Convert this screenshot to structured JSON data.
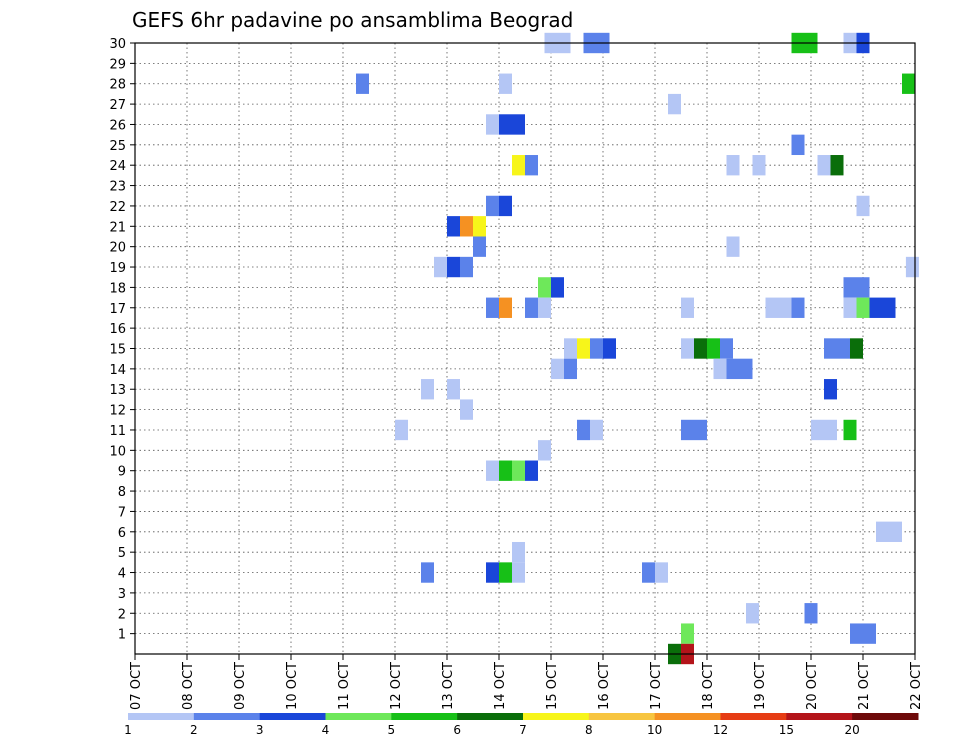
{
  "chart_data": {
    "type": "heatmap",
    "title": "GEFS 6hr padavine po ansamblima Beograd",
    "x_ticks": [
      "07 OCT",
      "08 OCT",
      "09 OCT",
      "10 OCT",
      "11 OCT",
      "12 OCT",
      "13 OCT",
      "14 OCT",
      "15 OCT",
      "16 OCT",
      "17 OCT",
      "18 OCT",
      "19 OCT",
      "20 OCT",
      "21 OCT",
      "22 OCT"
    ],
    "y_ticks": [
      1,
      2,
      3,
      4,
      5,
      6,
      7,
      8,
      9,
      10,
      11,
      12,
      13,
      14,
      15,
      16,
      17,
      18,
      19,
      20,
      21,
      22,
      23,
      24,
      25,
      26,
      27,
      28,
      29,
      30
    ],
    "xlim": [
      0,
      60
    ],
    "ylim": [
      0,
      30
    ],
    "grid": true,
    "legend_placement": "bottom",
    "legend_labels": [
      "1",
      "2",
      "3",
      "4",
      "5",
      "6",
      "7",
      "8",
      "10",
      "12",
      "15",
      "20"
    ],
    "legend_colors": [
      "#b4c6f5",
      "#5b82ea",
      "#1a46d9",
      "#6ee85a",
      "#17c017",
      "#0a6e0a",
      "#f7f51a",
      "#f7c540",
      "#f59122",
      "#e63c14",
      "#b4141a",
      "#6e0a0a"
    ],
    "cells": [
      {
        "x": 32.0,
        "y": 30,
        "c": 1
      },
      {
        "x": 33.0,
        "y": 30,
        "c": 1
      },
      {
        "x": 35.0,
        "y": 30,
        "c": 2
      },
      {
        "x": 36.0,
        "y": 30,
        "c": 2
      },
      {
        "x": 51.0,
        "y": 30,
        "c": 5
      },
      {
        "x": 52.0,
        "y": 30,
        "c": 5
      },
      {
        "x": 55.0,
        "y": 30,
        "c": 1
      },
      {
        "x": 56.0,
        "y": 30,
        "c": 3
      },
      {
        "x": 17.5,
        "y": 28,
        "c": 2
      },
      {
        "x": 28.5,
        "y": 28,
        "c": 1
      },
      {
        "x": 59.5,
        "y": 28,
        "c": 5
      },
      {
        "x": 41.5,
        "y": 27,
        "c": 1
      },
      {
        "x": 27.5,
        "y": 26,
        "c": 1
      },
      {
        "x": 28.5,
        "y": 26,
        "c": 3
      },
      {
        "x": 29.5,
        "y": 26,
        "c": 3
      },
      {
        "x": 51.0,
        "y": 25,
        "c": 2
      },
      {
        "x": 29.5,
        "y": 24,
        "c": 7
      },
      {
        "x": 30.5,
        "y": 24,
        "c": 2
      },
      {
        "x": 46.0,
        "y": 24,
        "c": 1
      },
      {
        "x": 48.0,
        "y": 24,
        "c": 1
      },
      {
        "x": 53.0,
        "y": 24,
        "c": 1
      },
      {
        "x": 54.0,
        "y": 24,
        "c": 6
      },
      {
        "x": 27.5,
        "y": 22,
        "c": 2
      },
      {
        "x": 28.5,
        "y": 22,
        "c": 3
      },
      {
        "x": 56.0,
        "y": 22,
        "c": 1
      },
      {
        "x": 24.5,
        "y": 21,
        "c": 3
      },
      {
        "x": 25.5,
        "y": 21,
        "c": 9
      },
      {
        "x": 26.5,
        "y": 21,
        "c": 7
      },
      {
        "x": 26.5,
        "y": 20,
        "c": 2
      },
      {
        "x": 46.0,
        "y": 20,
        "c": 1
      },
      {
        "x": 23.5,
        "y": 19,
        "c": 1
      },
      {
        "x": 24.5,
        "y": 19,
        "c": 3
      },
      {
        "x": 25.5,
        "y": 19,
        "c": 2
      },
      {
        "x": 59.8,
        "y": 19,
        "c": 1
      },
      {
        "x": 31.5,
        "y": 18,
        "c": 4
      },
      {
        "x": 32.5,
        "y": 18,
        "c": 3
      },
      {
        "x": 56.0,
        "y": 18,
        "c": 2
      },
      {
        "x": 55.0,
        "y": 18,
        "c": 2
      },
      {
        "x": 27.5,
        "y": 17,
        "c": 2
      },
      {
        "x": 28.5,
        "y": 17,
        "c": 9
      },
      {
        "x": 30.5,
        "y": 17,
        "c": 2
      },
      {
        "x": 31.5,
        "y": 17,
        "c": 1
      },
      {
        "x": 42.5,
        "y": 17,
        "c": 1
      },
      {
        "x": 49.0,
        "y": 17,
        "c": 1
      },
      {
        "x": 50.0,
        "y": 17,
        "c": 1
      },
      {
        "x": 51.0,
        "y": 17,
        "c": 2
      },
      {
        "x": 55.0,
        "y": 17,
        "c": 1
      },
      {
        "x": 56.0,
        "y": 17,
        "c": 4
      },
      {
        "x": 57.0,
        "y": 17,
        "c": 3
      },
      {
        "x": 58.0,
        "y": 17,
        "c": 3
      },
      {
        "x": 33.5,
        "y": 15,
        "c": 1
      },
      {
        "x": 34.5,
        "y": 15,
        "c": 7
      },
      {
        "x": 35.5,
        "y": 15,
        "c": 2
      },
      {
        "x": 36.5,
        "y": 15,
        "c": 3
      },
      {
        "x": 42.5,
        "y": 15,
        "c": 1
      },
      {
        "x": 43.5,
        "y": 15,
        "c": 6
      },
      {
        "x": 44.5,
        "y": 15,
        "c": 5
      },
      {
        "x": 45.5,
        "y": 15,
        "c": 2
      },
      {
        "x": 53.5,
        "y": 15,
        "c": 2
      },
      {
        "x": 54.5,
        "y": 15,
        "c": 2
      },
      {
        "x": 55.5,
        "y": 15,
        "c": 6
      },
      {
        "x": 32.5,
        "y": 14,
        "c": 1
      },
      {
        "x": 33.5,
        "y": 14,
        "c": 2
      },
      {
        "x": 45.0,
        "y": 14,
        "c": 1
      },
      {
        "x": 46.0,
        "y": 14,
        "c": 2
      },
      {
        "x": 47.0,
        "y": 14,
        "c": 2
      },
      {
        "x": 22.5,
        "y": 13,
        "c": 1
      },
      {
        "x": 24.5,
        "y": 13,
        "c": 1
      },
      {
        "x": 53.5,
        "y": 13,
        "c": 3
      },
      {
        "x": 25.5,
        "y": 12,
        "c": 1
      },
      {
        "x": 20.5,
        "y": 11,
        "c": 1
      },
      {
        "x": 34.5,
        "y": 11,
        "c": 2
      },
      {
        "x": 35.5,
        "y": 11,
        "c": 1
      },
      {
        "x": 42.5,
        "y": 11,
        "c": 2
      },
      {
        "x": 43.5,
        "y": 11,
        "c": 2
      },
      {
        "x": 52.5,
        "y": 11,
        "c": 1
      },
      {
        "x": 53.5,
        "y": 11,
        "c": 1
      },
      {
        "x": 55.0,
        "y": 11,
        "c": 5
      },
      {
        "x": 31.5,
        "y": 10,
        "c": 1
      },
      {
        "x": 27.5,
        "y": 9,
        "c": 1
      },
      {
        "x": 28.5,
        "y": 9,
        "c": 5
      },
      {
        "x": 29.5,
        "y": 9,
        "c": 4
      },
      {
        "x": 30.5,
        "y": 9,
        "c": 3
      },
      {
        "x": 57.5,
        "y": 6,
        "c": 1
      },
      {
        "x": 58.5,
        "y": 6,
        "c": 1
      },
      {
        "x": 29.5,
        "y": 5,
        "c": 1
      },
      {
        "x": 22.5,
        "y": 4,
        "c": 2
      },
      {
        "x": 27.5,
        "y": 4,
        "c": 3
      },
      {
        "x": 28.5,
        "y": 4,
        "c": 5
      },
      {
        "x": 29.5,
        "y": 4,
        "c": 1
      },
      {
        "x": 39.5,
        "y": 4,
        "c": 2
      },
      {
        "x": 40.5,
        "y": 4,
        "c": 1
      },
      {
        "x": 47.5,
        "y": 2,
        "c": 1
      },
      {
        "x": 52.0,
        "y": 2,
        "c": 2
      },
      {
        "x": 42.5,
        "y": 1,
        "c": 4
      },
      {
        "x": 55.5,
        "y": 1,
        "c": 2
      },
      {
        "x": 56.5,
        "y": 1,
        "c": 2
      },
      {
        "x": 41.5,
        "y": 0,
        "c": 6
      },
      {
        "x": 42.5,
        "y": 0,
        "c": 11
      }
    ]
  }
}
